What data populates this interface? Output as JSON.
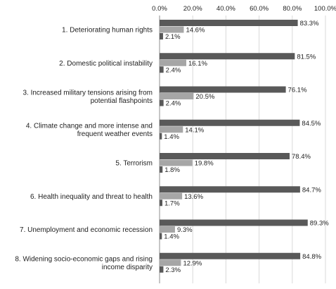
{
  "chart_data": {
    "type": "bar",
    "orientation": "horizontal",
    "title": "",
    "xlabel": "",
    "ylabel": "",
    "xlim": [
      0,
      100
    ],
    "x_ticks": [
      "0.0%",
      "20.0%",
      "40.0%",
      "60.0%",
      "80.0%",
      "100.0%"
    ],
    "tick_values": [
      0,
      20,
      40,
      60,
      80,
      100
    ],
    "axis_position": "top",
    "grid": true,
    "legend": "none",
    "categories": [
      [
        "1. Deteriorating human rights"
      ],
      [
        "2. Domestic political instability"
      ],
      [
        "3. Increased military tensions arising from",
        "potential flashpoints"
      ],
      [
        "4. Climate change and more intense and",
        "frequent weather events"
      ],
      [
        "5. Terrorism"
      ],
      [
        "6. Health inequality and threat to health"
      ],
      [
        "7. Unemployment and economic recession"
      ],
      [
        "8. Widening socio-economic gaps and rising",
        "income disparity"
      ]
    ],
    "series": [
      {
        "color": "#595959",
        "values": [
          83.3,
          81.5,
          76.1,
          84.5,
          78.4,
          84.7,
          89.3,
          84.8
        ],
        "labels": [
          "83.3%",
          "81.5%",
          "76.1%",
          "84.5%",
          "78.4%",
          "84.7%",
          "89.3%",
          "84.8%"
        ]
      },
      {
        "color": "#a6a6a6",
        "values": [
          14.6,
          16.1,
          20.5,
          14.1,
          19.8,
          13.6,
          9.3,
          12.9
        ],
        "labels": [
          "14.6%",
          "16.1%",
          "20.5%",
          "14.1%",
          "19.8%",
          "13.6%",
          "9.3%",
          "12.9%"
        ]
      },
      {
        "color": "#595959",
        "values": [
          2.1,
          2.4,
          2.4,
          1.4,
          1.8,
          1.7,
          1.4,
          2.3
        ],
        "labels": [
          "2.1%",
          "2.4%",
          "2.4%",
          "1.4%",
          "1.8%",
          "1.7%",
          "1.4%",
          "2.3%"
        ]
      }
    ]
  }
}
